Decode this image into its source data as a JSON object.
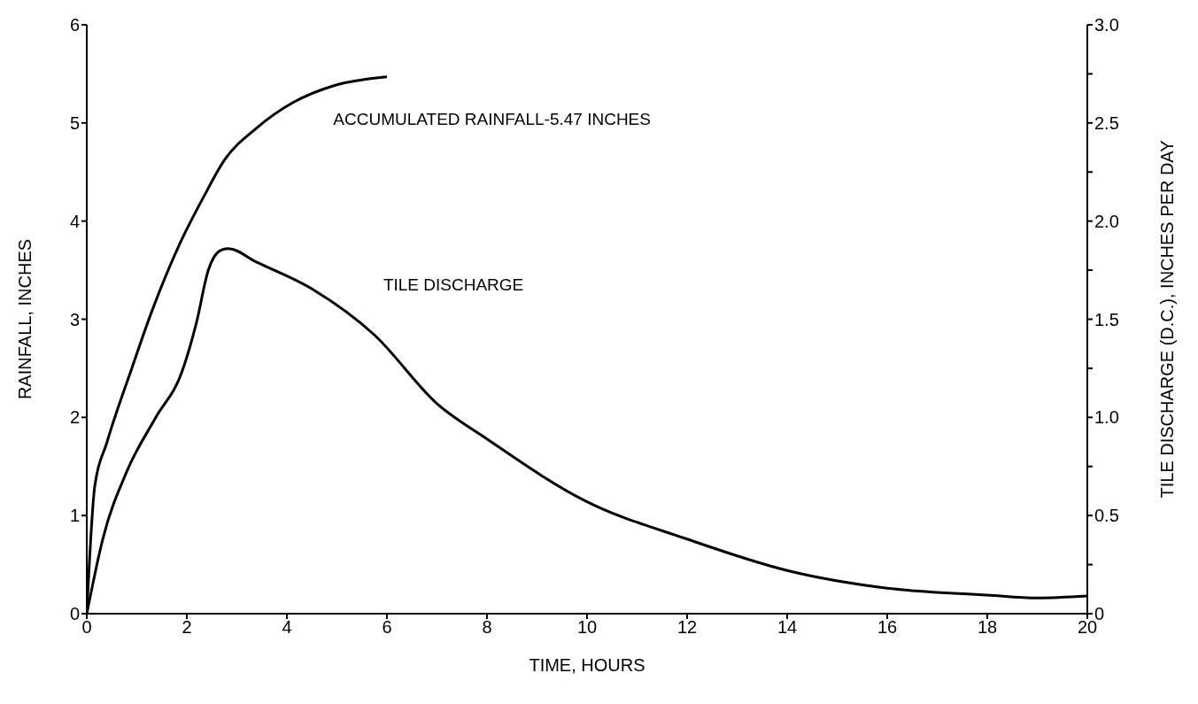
{
  "chart_data": {
    "type": "line",
    "xlabel": "TIME, HOURS",
    "ylabel": "RAINFALL, INCHES",
    "y2label": "TILE DISCHARGE (D.C.), INCHES PER DAY",
    "xlim": [
      0,
      20
    ],
    "xticks": [
      0,
      2,
      4,
      6,
      8,
      10,
      12,
      14,
      16,
      18,
      20
    ],
    "ylim": [
      0,
      6
    ],
    "yticks": [
      0,
      1,
      2,
      3,
      4,
      5,
      6
    ],
    "y2lim": [
      0,
      3
    ],
    "y2ticks": [
      {
        "value": 0,
        "label": "0"
      },
      {
        "value": 0.25,
        "label": null
      },
      {
        "value": 0.5,
        "label": "0.5"
      },
      {
        "value": 0.75,
        "label": null
      },
      {
        "value": 1,
        "label": "1.0"
      },
      {
        "value": 1.25,
        "label": null
      },
      {
        "value": 1.5,
        "label": "1.5"
      },
      {
        "value": 1.75,
        "label": null
      },
      {
        "value": 2,
        "label": "2.0"
      },
      {
        "value": 2.25,
        "label": null
      },
      {
        "value": 2.5,
        "label": "2.5"
      },
      {
        "value": 2.75,
        "label": null
      },
      {
        "value": 3,
        "label": "3.0"
      }
    ],
    "grid": false,
    "legend": false,
    "marker": "none",
    "line_style": "solid",
    "series": [
      {
        "name": "ACCUMULATED RAINFALL-5.47 INCHES",
        "color": "#000000",
        "x": [
          0,
          0.16,
          0.4,
          0.9,
          1.3,
          1.86,
          2.35,
          2.75,
          3.4,
          4.13,
          4.94,
          6
        ],
        "values": [
          0,
          1.3,
          1.74,
          2.5,
          3.08,
          3.77,
          4.26,
          4.62,
          4.95,
          5.21,
          5.38,
          5.47
        ]
      },
      {
        "name": "TILE DISCHARGE",
        "color": "#000000",
        "axis": "y2",
        "x": [
          0,
          0.32,
          0.81,
          1.38,
          1.9,
          2.19,
          2.43,
          2.67,
          2.83,
          3.4,
          4.53,
          5.75,
          7,
          8,
          10,
          12,
          14,
          16,
          18,
          19,
          20
        ],
        "values": [
          0,
          0.38,
          0.73,
          1.0,
          1.23,
          1.48,
          1.75,
          1.85,
          1.86,
          1.79,
          1.65,
          1.42,
          1.07,
          0.89,
          0.57,
          0.38,
          0.22,
          0.13,
          0.095,
          0.08,
          0.09
        ]
      }
    ]
  }
}
